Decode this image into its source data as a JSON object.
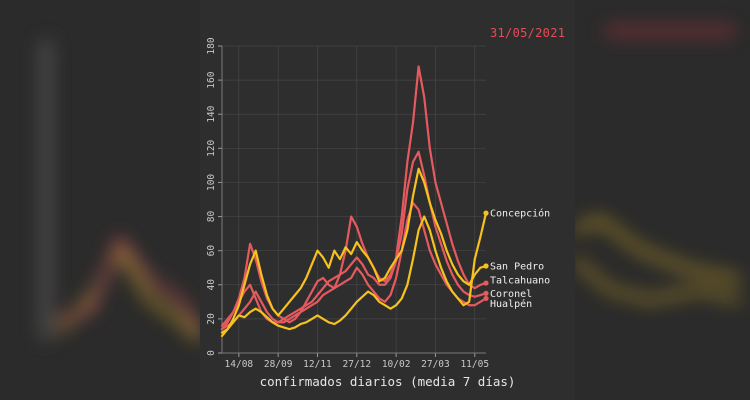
{
  "date_label": "31/05/2021",
  "colors": {
    "background": "#2b2b2b",
    "panel": "#2e2e2e",
    "grid": "#464646",
    "axis_text": "#c8c8c8",
    "red": "#e55a5f",
    "yellow": "#f6c21d",
    "date": "#e84c55"
  },
  "chart_data": {
    "type": "line",
    "title": "",
    "xlabel": "confirmados diarios (media 7 días)",
    "ylabel": "",
    "ylim": [
      0,
      180
    ],
    "yticks": [
      0,
      20,
      40,
      60,
      80,
      100,
      120,
      140,
      160,
      180
    ],
    "x_index_range": [
      0,
      43
    ],
    "xtick_labels": [
      "14/08",
      "28/09",
      "12/11",
      "27/12",
      "10/02",
      "27/03",
      "11/05"
    ],
    "xtick_index": [
      3,
      10,
      17,
      24,
      31,
      38,
      45
    ],
    "legend": "direct labels at line ends",
    "series": [
      {
        "name": "Concepción",
        "color": "yellow",
        "values": [
          12,
          14,
          18,
          22,
          21,
          24,
          26,
          24,
          21,
          18,
          16,
          15,
          14,
          15,
          17,
          18,
          20,
          22,
          20,
          18,
          17,
          19,
          22,
          26,
          30,
          33,
          36,
          34,
          30,
          28,
          26,
          28,
          32,
          40,
          55,
          72,
          80,
          72,
          60,
          50,
          42,
          36,
          32,
          28,
          30,
          55,
          68,
          82
        ]
      },
      {
        "name": "San Pedro",
        "color": "yellow",
        "values": [
          10,
          14,
          20,
          28,
          40,
          52,
          60,
          46,
          34,
          26,
          22,
          26,
          30,
          34,
          38,
          44,
          52,
          60,
          56,
          50,
          60,
          55,
          62,
          58,
          65,
          60,
          56,
          50,
          42,
          44,
          50,
          55,
          60,
          72,
          92,
          108,
          100,
          88,
          78,
          70,
          60,
          52,
          46,
          42,
          40,
          46,
          50,
          51
        ]
      },
      {
        "name": "Talcahuano",
        "color": "red",
        "values": [
          14,
          18,
          24,
          32,
          44,
          64,
          55,
          42,
          32,
          26,
          22,
          20,
          18,
          20,
          24,
          30,
          36,
          42,
          44,
          40,
          38,
          46,
          60,
          80,
          74,
          64,
          56,
          50,
          44,
          42,
          46,
          56,
          80,
          112,
          135,
          168,
          150,
          120,
          100,
          88,
          76,
          64,
          54,
          46,
          40,
          38,
          40,
          41
        ]
      },
      {
        "name": "Coronel",
        "color": "red",
        "values": [
          16,
          20,
          24,
          30,
          36,
          40,
          32,
          24,
          20,
          18,
          18,
          20,
          22,
          24,
          26,
          28,
          30,
          34,
          38,
          42,
          44,
          46,
          48,
          52,
          56,
          52,
          46,
          44,
          40,
          40,
          44,
          54,
          70,
          96,
          112,
          118,
          104,
          88,
          74,
          64,
          54,
          46,
          40,
          36,
          34,
          33,
          34,
          35
        ]
      },
      {
        "name": "Hualpén",
        "color": "red",
        "values": [
          14,
          16,
          18,
          22,
          26,
          30,
          36,
          30,
          24,
          20,
          18,
          18,
          20,
          22,
          24,
          26,
          28,
          30,
          34,
          36,
          38,
          40,
          42,
          44,
          50,
          46,
          40,
          36,
          32,
          30,
          34,
          44,
          60,
          78,
          88,
          84,
          72,
          60,
          52,
          46,
          40,
          36,
          32,
          30,
          28,
          28,
          30,
          32
        ]
      }
    ]
  }
}
